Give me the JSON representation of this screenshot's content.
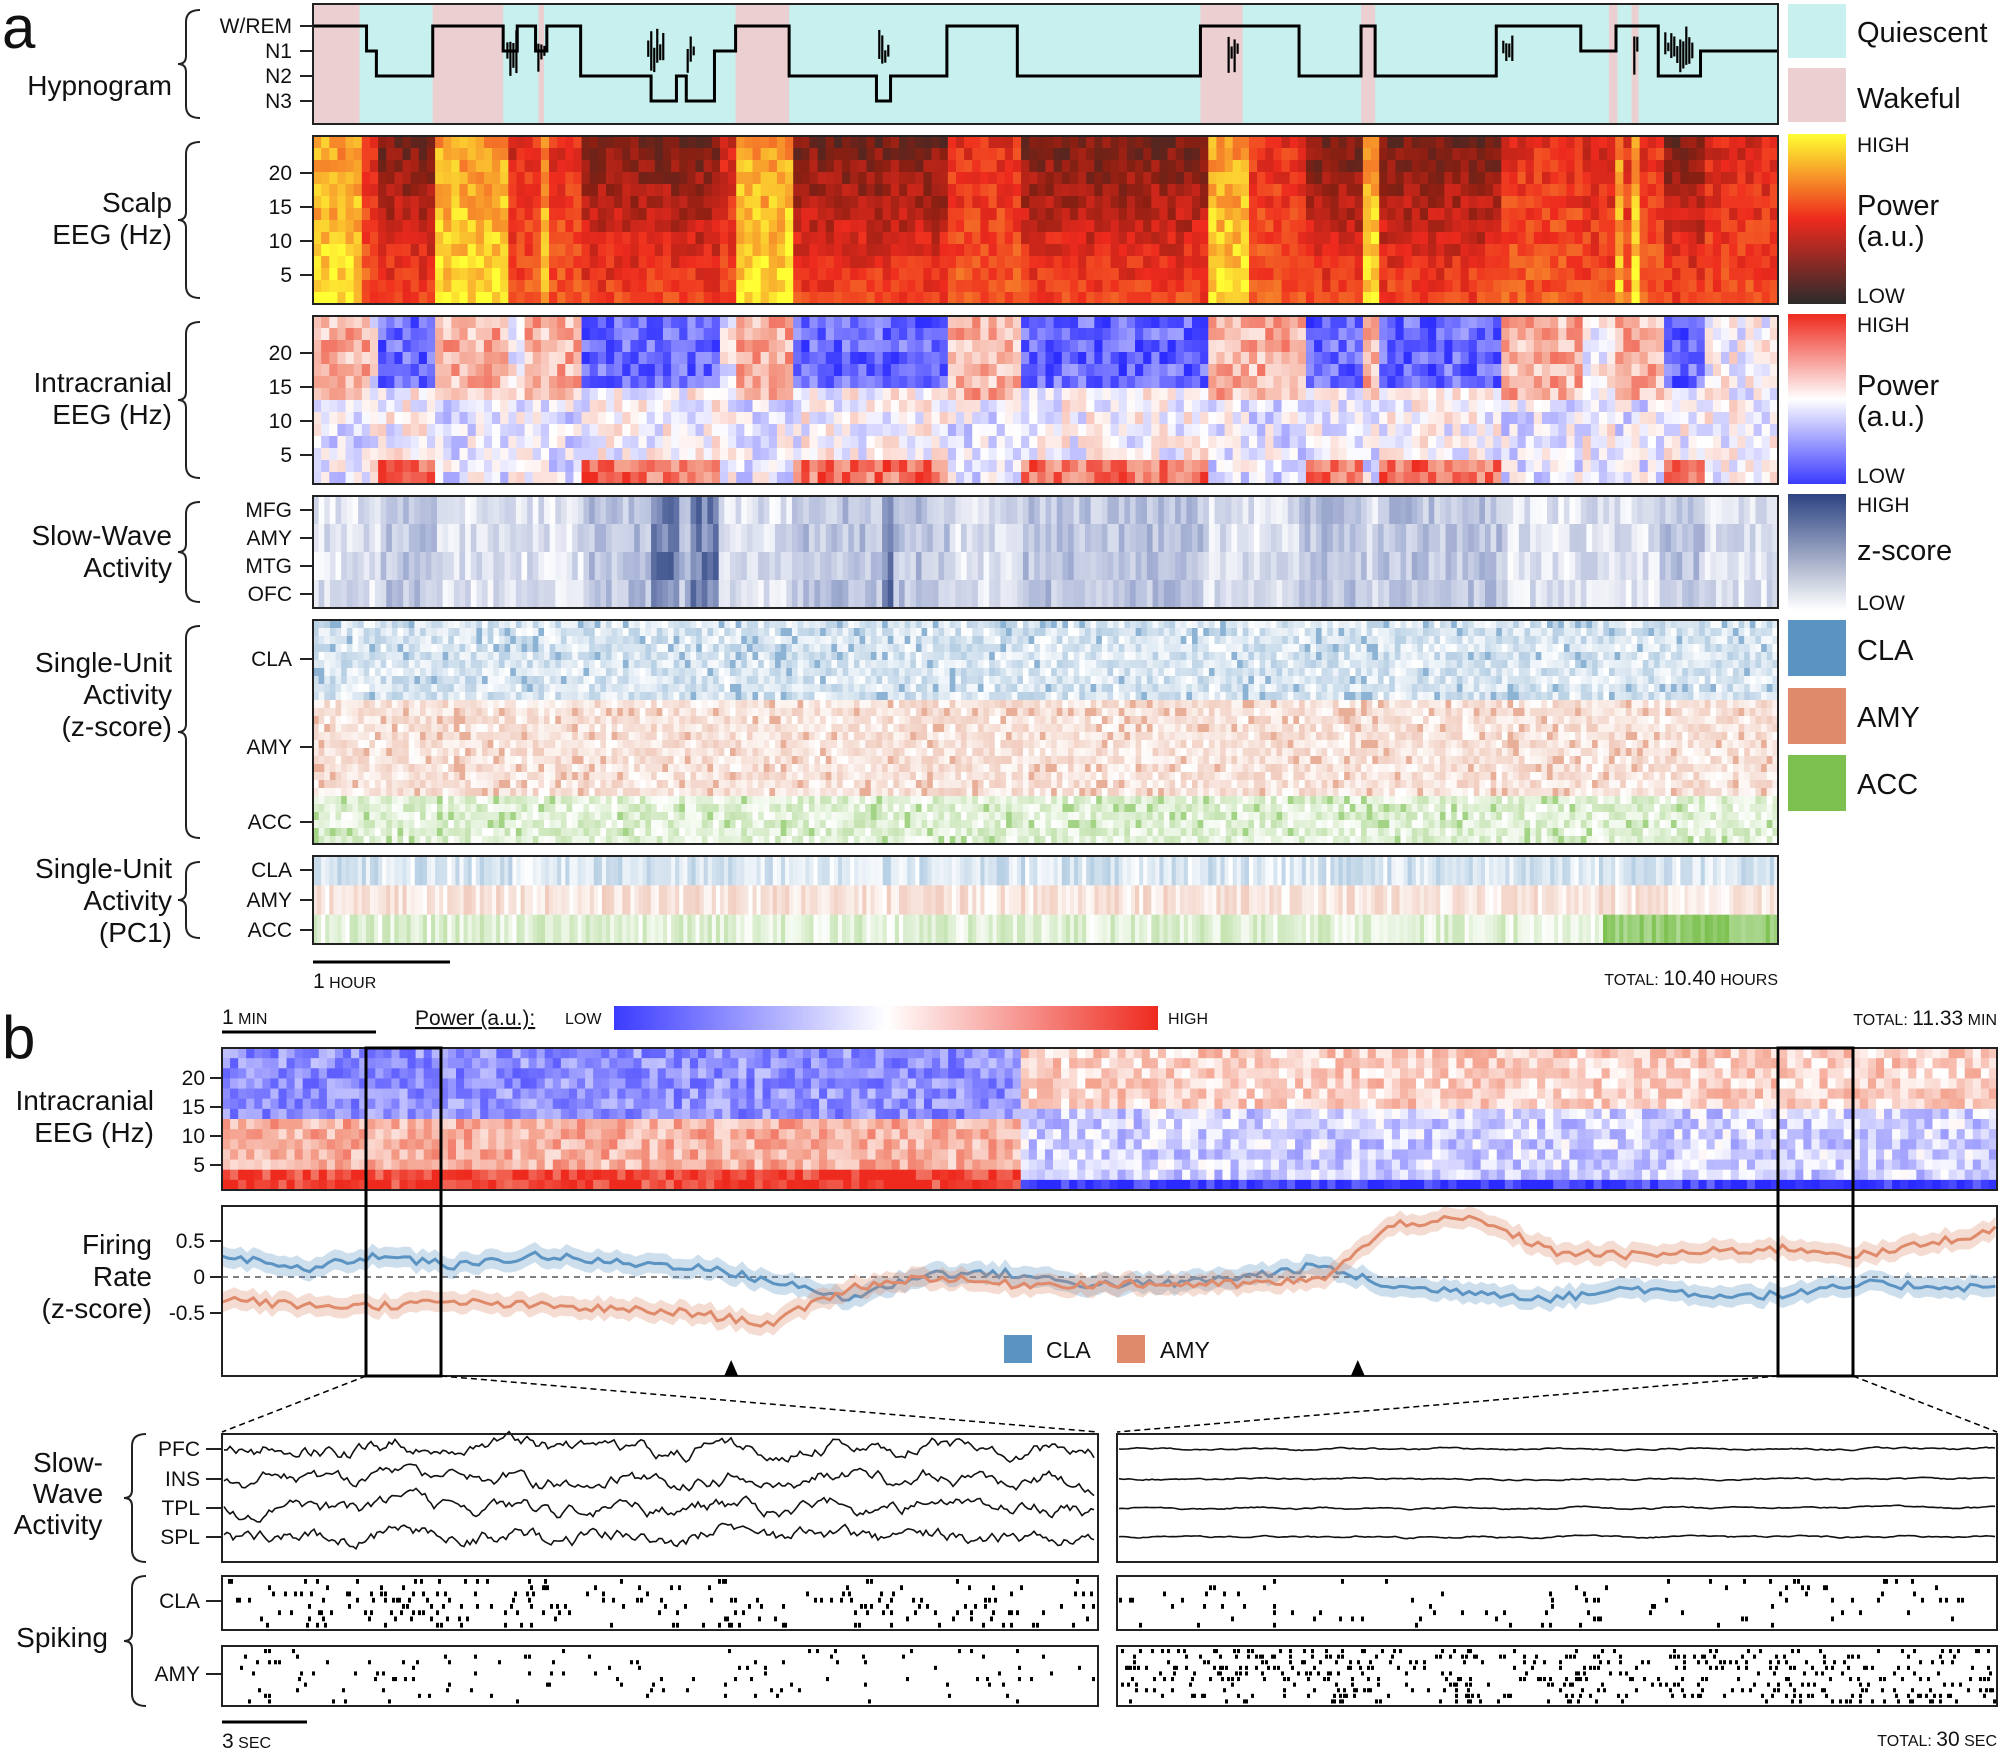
{
  "panel_a": {
    "letter": "a",
    "rows": {
      "hypnogram": [
        "Hypnogram"
      ],
      "scalp": [
        "Scalp",
        "EEG (Hz)"
      ],
      "intra": [
        "Intracranial",
        "EEG (Hz)"
      ],
      "swa": [
        "Slow-Wave",
        "Activity"
      ],
      "su": [
        "Single-Unit",
        "Activity",
        "(z-score)"
      ],
      "pc1": [
        "Single-Unit",
        "Activity",
        "(PC1)"
      ]
    },
    "stage_ticks": [
      "W/REM",
      "N1",
      "N2",
      "N3"
    ],
    "freq_ticks": [
      "20",
      "15",
      "10",
      "5"
    ],
    "swa_ticks": [
      "MFG",
      "AMY",
      "MTG",
      "OFC"
    ],
    "su_ticks": [
      "CLA",
      "AMY",
      "ACC"
    ],
    "pc1_ticks": [
      "CLA",
      "AMY",
      "ACC"
    ],
    "legend": {
      "quiescent": "Quiescent",
      "wakeful": "Wakeful",
      "high": "HIGH",
      "low": "LOW",
      "power": [
        "Power",
        "(a.u.)"
      ],
      "zscore": "z-score",
      "cla": "CLA",
      "amy": "AMY",
      "acc": "ACC"
    },
    "scale_bar": {
      "value": "1",
      "unit": "HOUR"
    },
    "total": {
      "prefix": "TOTAL:",
      "value": "10.40",
      "unit": "HOURS"
    }
  },
  "panel_b": {
    "letter": "b",
    "scale_bar_top": {
      "value": "1",
      "unit": "MIN"
    },
    "power_label": "Power (a.u.):",
    "power_low": "LOW",
    "power_high": "HIGH",
    "total_top": {
      "prefix": "TOTAL:",
      "value": "11.33",
      "unit": "MIN"
    },
    "eeg_label": [
      "Intracranial",
      "EEG (Hz)"
    ],
    "eeg_ticks": [
      "20",
      "15",
      "10",
      "5"
    ],
    "fr_label": [
      "Firing",
      "Rate",
      "(z-score)"
    ],
    "fr_ticks": [
      "0.5",
      "0",
      "-0.5"
    ],
    "legend": {
      "cla": "CLA",
      "amy": "AMY"
    },
    "swa_label": [
      "Slow-",
      "Wave",
      "Activity"
    ],
    "swa_ticks": [
      "PFC",
      "INS",
      "TPL",
      "SPL"
    ],
    "spiking_label": "Spiking",
    "spiking_ticks": [
      "CLA",
      "AMY"
    ],
    "scale_bar_bottom": {
      "value": "3",
      "unit": "SEC"
    },
    "total_bottom": {
      "prefix": "TOTAL:",
      "value": "30",
      "unit": "SEC"
    }
  },
  "colors": {
    "quiescent": "#c8f0ee",
    "wakeful": "#eccfd1",
    "cla": "#5b93c2",
    "amy": "#df8b6b",
    "acc": "#7cc150",
    "swa": "#2d4382",
    "eeg_high": "#ee2a1e",
    "eeg_low": "#2b2bff"
  },
  "chart_data": [
    {
      "type": "line",
      "title": "Hypnogram",
      "xlabel": "",
      "ylabel": "",
      "y_categories": [
        "W/REM",
        "N1",
        "N2",
        "N3"
      ],
      "x_unit": "hours",
      "xlim": [
        0,
        10.4
      ],
      "state_periods": [
        {
          "state": "Wakeful",
          "start": 0.0,
          "end": 0.33
        },
        {
          "state": "Wakeful",
          "start": 0.85,
          "end": 1.35
        },
        {
          "state": "Wakeful",
          "start": 1.6,
          "end": 1.64
        },
        {
          "state": "Wakeful",
          "start": 3.0,
          "end": 3.38
        },
        {
          "state": "Wakeful",
          "start": 6.3,
          "end": 6.6
        },
        {
          "state": "Wakeful",
          "start": 7.44,
          "end": 7.54
        },
        {
          "state": "Wakeful",
          "start": 9.2,
          "end": 9.26
        },
        {
          "state": "Wakeful",
          "start": 9.36,
          "end": 9.41
        }
      ],
      "stage_sequence": [
        {
          "start": 0.0,
          "end": 0.38,
          "stage": "W/REM"
        },
        {
          "start": 0.38,
          "end": 0.45,
          "stage": "N1"
        },
        {
          "start": 0.45,
          "end": 0.85,
          "stage": "N2"
        },
        {
          "start": 0.85,
          "end": 1.35,
          "stage": "W/REM"
        },
        {
          "start": 1.35,
          "end": 1.45,
          "stage": "N1"
        },
        {
          "start": 1.45,
          "end": 1.58,
          "stage": "W/REM"
        },
        {
          "start": 1.58,
          "end": 1.66,
          "stage": "N1"
        },
        {
          "start": 1.66,
          "end": 1.9,
          "stage": "W/REM"
        },
        {
          "start": 1.9,
          "end": 2.4,
          "stage": "N2"
        },
        {
          "start": 2.4,
          "end": 2.58,
          "stage": "N3"
        },
        {
          "start": 2.58,
          "end": 2.65,
          "stage": "N2"
        },
        {
          "start": 2.65,
          "end": 2.85,
          "stage": "N3"
        },
        {
          "start": 2.85,
          "end": 3.0,
          "stage": "N1"
        },
        {
          "start": 3.0,
          "end": 3.38,
          "stage": "W/REM"
        },
        {
          "start": 3.38,
          "end": 4.0,
          "stage": "N2"
        },
        {
          "start": 4.0,
          "end": 4.1,
          "stage": "N3"
        },
        {
          "start": 4.1,
          "end": 4.5,
          "stage": "N2"
        },
        {
          "start": 4.5,
          "end": 5.0,
          "stage": "W/REM"
        },
        {
          "start": 5.0,
          "end": 6.3,
          "stage": "N2"
        },
        {
          "start": 6.3,
          "end": 6.6,
          "stage": "W/REM"
        },
        {
          "start": 6.6,
          "end": 7.0,
          "stage": "W/REM"
        },
        {
          "start": 7.0,
          "end": 7.44,
          "stage": "N2"
        },
        {
          "start": 7.44,
          "end": 7.54,
          "stage": "W/REM"
        },
        {
          "start": 7.54,
          "end": 8.4,
          "stage": "N2"
        },
        {
          "start": 8.4,
          "end": 9.0,
          "stage": "W/REM"
        },
        {
          "start": 9.0,
          "end": 9.25,
          "stage": "N1"
        },
        {
          "start": 9.25,
          "end": 9.55,
          "stage": "W/REM"
        },
        {
          "start": 9.55,
          "end": 9.85,
          "stage": "N2"
        },
        {
          "start": 9.85,
          "end": 10.4,
          "stage": "N1"
        }
      ]
    },
    {
      "type": "heatmap",
      "title": "Scalp EEG (Hz)",
      "ylabel": "Scalp EEG (Hz)",
      "y_ticks": [
        5,
        10,
        15,
        20
      ],
      "ylim": [
        0,
        25
      ],
      "x_unit": "hours",
      "xlim": [
        0,
        10.4
      ],
      "colorscale": [
        "#2b2b2b",
        "#ee2a1e",
        "#ffff33"
      ]
    },
    {
      "type": "heatmap",
      "title": "Intracranial EEG (Hz)",
      "ylabel": "Intracranial EEG (Hz)",
      "y_ticks": [
        5,
        10,
        15,
        20
      ],
      "ylim": [
        0,
        25
      ],
      "x_unit": "hours",
      "xlim": [
        0,
        10.4
      ],
      "colorscale": [
        "#2b2bff",
        "#ffffff",
        "#ee2a1e"
      ]
    },
    {
      "type": "heatmap",
      "title": "Slow-Wave Activity",
      "rows": [
        "MFG",
        "AMY",
        "MTG",
        "OFC"
      ],
      "xlim": [
        0,
        10.4
      ],
      "colorscale": [
        "#ffffff",
        "#2d4382"
      ]
    },
    {
      "type": "heatmap",
      "title": "Single-Unit Activity (z-score)",
      "groups": [
        "CLA",
        "AMY",
        "ACC"
      ],
      "xlim": [
        0,
        10.4
      ]
    },
    {
      "type": "heatmap",
      "title": "Single-Unit Activity (PC1)",
      "rows": [
        "CLA",
        "AMY",
        "ACC"
      ],
      "xlim": [
        0,
        10.4
      ]
    },
    {
      "type": "heatmap",
      "title": "Intracranial EEG (Hz)",
      "y_ticks": [
        5,
        10,
        15,
        20
      ],
      "ylim": [
        0,
        25
      ],
      "x_unit": "min",
      "xlim": [
        0,
        11.33
      ]
    },
    {
      "type": "line",
      "title": "Firing Rate (z-score)",
      "ylabel": "Firing Rate (z-score)",
      "ylim": [
        -0.9,
        0.75
      ],
      "y_ticks": [
        0.5,
        0,
        -0.5
      ],
      "x_unit": "min",
      "xlim": [
        0,
        11.33
      ],
      "x": [
        0,
        0.5,
        1.0,
        1.5,
        2.0,
        2.5,
        3.0,
        3.5,
        4.0,
        4.5,
        5.0,
        5.5,
        6.0,
        6.5,
        7.0,
        7.5,
        8.0,
        8.5,
        9.0,
        9.5,
        10.0,
        10.5,
        11.33
      ],
      "series": [
        {
          "name": "CLA",
          "values": [
            0.3,
            0.1,
            0.3,
            0.15,
            0.3,
            0.2,
            0.15,
            -0.05,
            -0.3,
            0.05,
            0.05,
            -0.1,
            -0.1,
            0.0,
            0.15,
            -0.15,
            -0.2,
            -0.3,
            -0.15,
            -0.25,
            -0.25,
            -0.1,
            -0.15
          ]
        },
        {
          "name": "AMY",
          "values": [
            -0.3,
            -0.4,
            -0.4,
            -0.35,
            -0.4,
            -0.45,
            -0.5,
            -0.65,
            -0.15,
            0.0,
            -0.1,
            -0.1,
            -0.1,
            -0.1,
            -0.05,
            0.75,
            0.8,
            0.35,
            0.3,
            0.35,
            0.4,
            0.3,
            0.65
          ]
        }
      ],
      "markers_x": [
        3.25,
        7.25
      ],
      "highlight_windows": [
        [
          0.83,
          1.27
        ],
        [
          10.5,
          10.95
        ]
      ],
      "reference_line_y": 0
    },
    {
      "type": "line",
      "title": "Slow-Wave Activity",
      "rows": [
        "PFC",
        "INS",
        "TPL",
        "SPL"
      ],
      "x_unit": "sec",
      "xlim": [
        0,
        30
      ],
      "windows": [
        "left",
        "right"
      ]
    },
    {
      "type": "scatter",
      "title": "Spiking",
      "rows": [
        "CLA",
        "AMY"
      ],
      "x_unit": "sec",
      "xlim": [
        0,
        30
      ],
      "windows": [
        "left",
        "right"
      ]
    }
  ]
}
